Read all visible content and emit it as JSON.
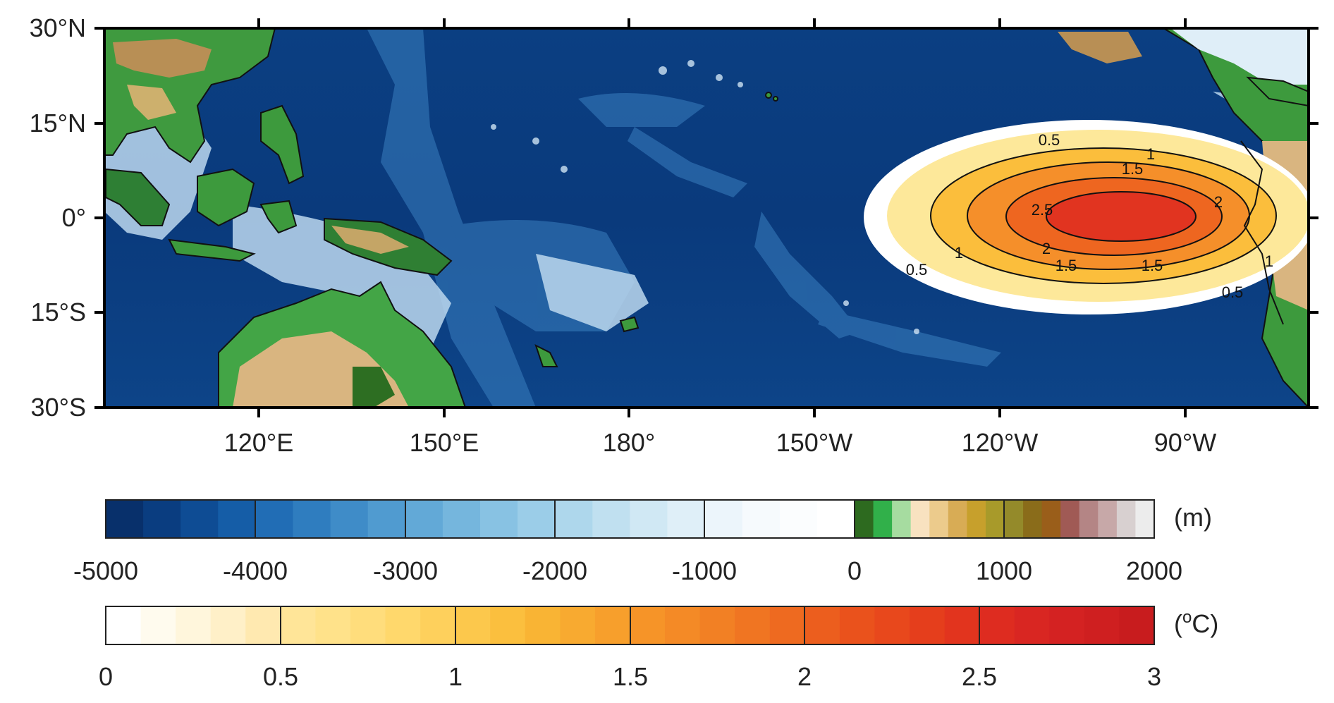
{
  "map": {
    "y_axis_labels": [
      "30°N",
      "15°N",
      "0°",
      "15°S",
      "30°S"
    ],
    "x_axis_labels": [
      "120°E",
      "150°E",
      "180°",
      "150°W",
      "120°W",
      "90°W"
    ],
    "contour_labels": [
      "0.5",
      "1",
      "1.5",
      "2",
      "2.5",
      "2",
      "1.5",
      "1.5",
      "1",
      "0.5",
      "1",
      "0.5"
    ],
    "colors": {
      "deep_ocean": "#083a7e",
      "shallow_ocean": "#c9e0f0",
      "lowland": "#3a9a3f",
      "highland": "#b89155",
      "anomaly_core": "#e0301e",
      "anomaly_edge": "#fde89a"
    }
  },
  "elevation_colorbar": {
    "unit": "(m)",
    "tick_labels": [
      "-5000",
      "-4000",
      "-3000",
      "-2000",
      "-1000",
      "0",
      "1000",
      "2000"
    ],
    "ocean_colors": [
      "#08306b",
      "#0a3d80",
      "#0e4c94",
      "#155da7",
      "#216db5",
      "#2f7dbf",
      "#3f8cc8",
      "#509bd0",
      "#62a9d7",
      "#75b6dd",
      "#88c2e3",
      "#9bcde8",
      "#aed7ec",
      "#c0e0f0",
      "#d0e8f4",
      "#dfeff8",
      "#ecf5fb",
      "#f6fafd",
      "#fbfdfe",
      "#ffffff"
    ],
    "land_colors": [
      "#2d6a1f",
      "#31b04a",
      "#a6dca0",
      "#f8e2c0",
      "#eccb8c",
      "#d8ac55",
      "#c7a02c",
      "#a89a2a",
      "#948a2a",
      "#8a6c1a",
      "#9a5e1a",
      "#a05a55",
      "#b48585",
      "#c7a8a8",
      "#d8d0d0",
      "#ececec"
    ]
  },
  "temperature_colorbar": {
    "unit": "(oC)",
    "unit_prefix": "(",
    "unit_degree": "o",
    "unit_suffix": "C)",
    "tick_labels": [
      "0",
      "0.5",
      "1",
      "1.5",
      "2",
      "2.5",
      "3"
    ],
    "colors": [
      "#ffffff",
      "#fffbee",
      "#fff6dc",
      "#fff0c8",
      "#ffe9b0",
      "#ffe598",
      "#ffe28a",
      "#ffdd7c",
      "#ffd86c",
      "#fed05c",
      "#fcc84c",
      "#fbbf3e",
      "#f9b434",
      "#f8aa30",
      "#f79f2c",
      "#f69428",
      "#f48a26",
      "#f28024",
      "#f07522",
      "#ee6a20",
      "#ec5e1e",
      "#ea521c",
      "#e8481c",
      "#e53e1c",
      "#e2341e",
      "#de2c20",
      "#d92622",
      "#d42222",
      "#cf1f20",
      "#c81c1e"
    ]
  }
}
